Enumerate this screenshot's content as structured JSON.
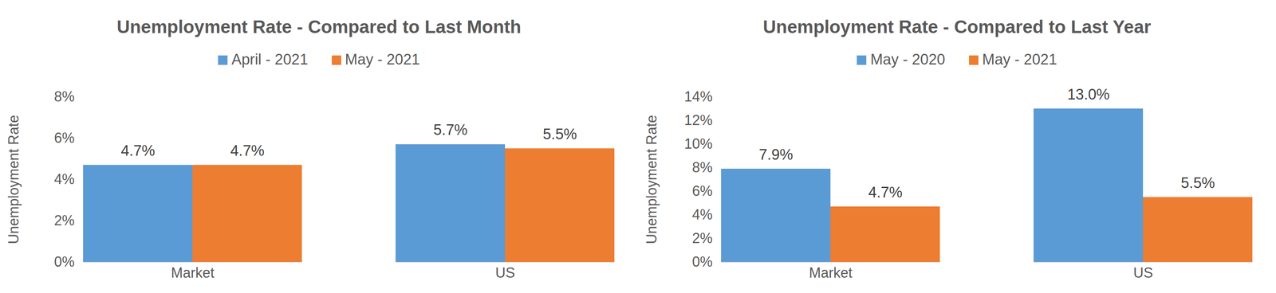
{
  "chart_data": [
    {
      "type": "bar",
      "title": "Unemployment Rate - Compared to Last Month",
      "y_label": "Unemployment Rate",
      "categories": [
        "Market",
        "US"
      ],
      "series": [
        {
          "name": "April - 2021",
          "color": "#5b9bd5",
          "values": [
            4.7,
            5.7
          ],
          "value_labels": [
            "4.7%",
            "5.7%"
          ]
        },
        {
          "name": "May - 2021",
          "color": "#ed7d31",
          "values": [
            4.7,
            5.5
          ],
          "value_labels": [
            "4.7%",
            "5.5%"
          ]
        }
      ],
      "ylim": [
        0,
        8
      ],
      "yticks": [
        {
          "value": 0,
          "label": "0%"
        },
        {
          "value": 2,
          "label": "2%"
        },
        {
          "value": 4,
          "label": "4%"
        },
        {
          "value": 6,
          "label": "6%"
        },
        {
          "value": 8,
          "label": "8%"
        }
      ],
      "grid": false,
      "legend": "top",
      "data_labels": true
    },
    {
      "type": "bar",
      "title": "Unemployment Rate - Compared to Last Year",
      "y_label": "Unemployment Rate",
      "categories": [
        "Market",
        "US"
      ],
      "series": [
        {
          "name": "May - 2020",
          "color": "#5b9bd5",
          "values": [
            7.9,
            13.0
          ],
          "value_labels": [
            "7.9%",
            "13.0%"
          ]
        },
        {
          "name": "May - 2021",
          "color": "#ed7d31",
          "values": [
            4.7,
            5.5
          ],
          "value_labels": [
            "4.7%",
            "5.5%"
          ]
        }
      ],
      "ylim": [
        0,
        14
      ],
      "yticks": [
        {
          "value": 0,
          "label": "0%"
        },
        {
          "value": 2,
          "label": "2%"
        },
        {
          "value": 4,
          "label": "4%"
        },
        {
          "value": 6,
          "label": "6%"
        },
        {
          "value": 8,
          "label": "8%"
        },
        {
          "value": 10,
          "label": "10%"
        },
        {
          "value": 12,
          "label": "12%"
        },
        {
          "value": 14,
          "label": "14%"
        }
      ],
      "grid": false,
      "legend": "top",
      "data_labels": true
    }
  ]
}
